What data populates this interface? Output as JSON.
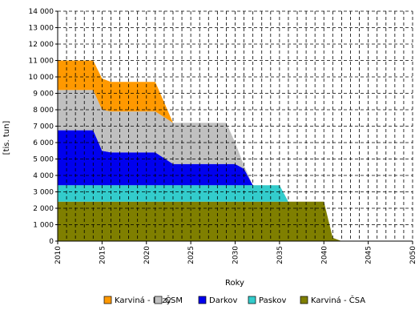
{
  "chart_data": {
    "type": "area",
    "stacked": true,
    "xlabel": "Roky",
    "ylabel": "[tis. tun]",
    "xlim": [
      2010,
      2050
    ],
    "ylim": [
      0,
      14000
    ],
    "x_ticks": [
      2010,
      2015,
      2020,
      2025,
      2030,
      2035,
      2040,
      2045,
      2050
    ],
    "x_tick_labels": [
      "2010",
      "2015",
      "2020",
      "2025",
      "2030",
      "2035",
      "2040",
      "2045",
      "2050"
    ],
    "y_ticks": [
      0,
      1000,
      2000,
      3000,
      4000,
      5000,
      6000,
      7000,
      8000,
      9000,
      10000,
      11000,
      12000,
      13000,
      14000
    ],
    "y_tick_labels": [
      "0",
      "1 000",
      "2 000",
      "3 000",
      "4 000",
      "5 000",
      "6 000",
      "7 000",
      "8 000",
      "9 000",
      "10 000",
      "11 000",
      "12 000",
      "13 000",
      "14 000"
    ],
    "grid": "dashed",
    "legend_position": "bottom",
    "series": [
      {
        "name": "Karviná - ČSA",
        "color": "#7f7f00",
        "x": [
          2010,
          2014,
          2015,
          2021,
          2023,
          2030,
          2031,
          2032,
          2036,
          2040,
          2041,
          2042
        ],
        "values": [
          2400,
          2400,
          2400,
          2400,
          2400,
          2400,
          2400,
          2400,
          2400,
          2400,
          200,
          0
        ]
      },
      {
        "name": "Paskov",
        "color": "#33cccc",
        "x": [
          2010,
          2014,
          2015,
          2021,
          2023,
          2030,
          2031,
          2032,
          2035,
          2036,
          2040,
          2041,
          2042
        ],
        "values": [
          1000,
          1000,
          1000,
          1000,
          1000,
          1000,
          1000,
          1000,
          1000,
          0,
          0,
          0,
          0
        ]
      },
      {
        "name": "Darkov",
        "color": "#0000ee",
        "x": [
          2010,
          2014,
          2015,
          2016,
          2021,
          2023,
          2030,
          2031,
          2032,
          2042
        ],
        "values": [
          3350,
          3350,
          2100,
          2000,
          2000,
          1300,
          1300,
          1000,
          0,
          0
        ]
      },
      {
        "name": "ČSM",
        "color": "#c0c0c0",
        "x": [
          2010,
          2014,
          2015,
          2016,
          2021,
          2023,
          2029,
          2030,
          2031,
          2032,
          2042
        ],
        "values": [
          2450,
          2450,
          2500,
          2500,
          2500,
          2500,
          2500,
          1300,
          200,
          0,
          0
        ]
      },
      {
        "name": "Karviná - Lazy",
        "color": "#ff9900",
        "x": [
          2010,
          2014,
          2015,
          2016,
          2021,
          2022,
          2023,
          2030,
          2042
        ],
        "values": [
          1800,
          1800,
          1900,
          1800,
          1800,
          900,
          0,
          0,
          0
        ]
      }
    ],
    "legend_order": [
      "Karviná - Lazy",
      "ČSM",
      "Darkov",
      "Paskov",
      "Karviná - ČSA"
    ]
  }
}
